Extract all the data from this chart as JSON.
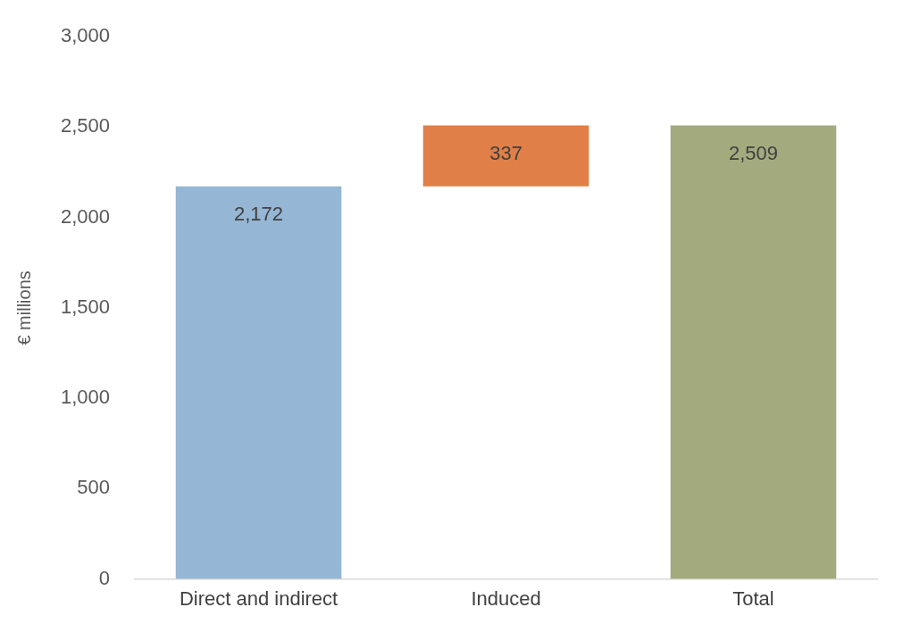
{
  "chart_data": {
    "type": "bar",
    "ylabel": "€ millions",
    "categories": [
      "Direct and indirect",
      "Induced",
      "Total"
    ],
    "values": [
      2172,
      337,
      2509
    ],
    "base": [
      0,
      2172,
      0
    ],
    "colors": [
      "#95b6d4",
      "#e07f47",
      "#a3ab7e"
    ],
    "value_labels": [
      "2,172",
      "337",
      "2,509"
    ],
    "ylim": [
      0,
      3000
    ],
    "yticks": [
      0,
      500,
      {
        "value": 1000,
        "label": "1,000"
      },
      {
        "value": 1500,
        "label": "1,500"
      },
      {
        "value": 2000,
        "label": "2,000"
      },
      {
        "value": 2500,
        "label": "2,500"
      },
      {
        "value": 3000,
        "label": "3,000"
      }
    ],
    "grid": false,
    "legend": false
  }
}
